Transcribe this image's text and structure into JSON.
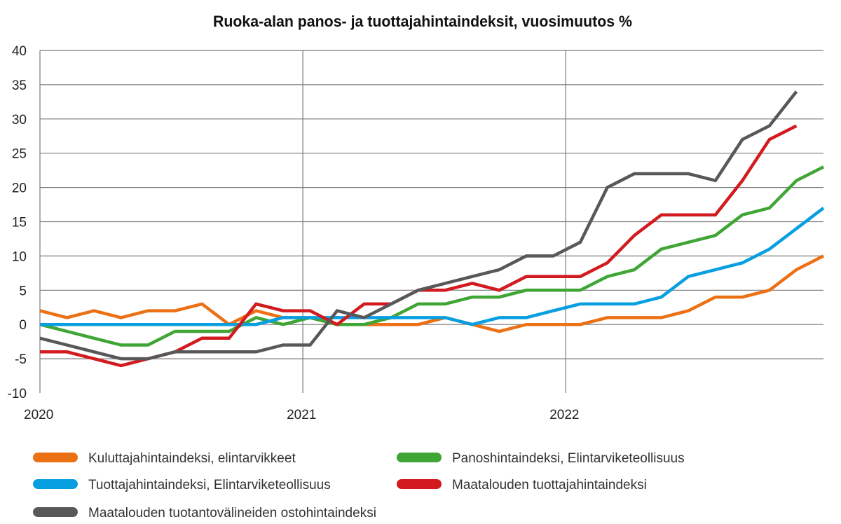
{
  "chart_data": {
    "type": "line",
    "title": "Ruoka-alan panos- ja tuottajahintaindeksit, vuosimuutos %",
    "xlabel": "",
    "ylabel": "",
    "ylim": [
      -10,
      40
    ],
    "yticks": [
      40,
      35,
      30,
      25,
      20,
      15,
      10,
      5,
      0,
      -5,
      -10
    ],
    "ytick_labels": [
      "40",
      "35",
      "30",
      "25",
      "20",
      "15",
      "10",
      "5",
      "0",
      "-5",
      "-10"
    ],
    "x_count": 30,
    "x_ticks": [
      {
        "label": "2020",
        "at": 0
      },
      {
        "label": "2021",
        "at": 9.73
      },
      {
        "label": "2022",
        "at": 19.46
      }
    ],
    "grid": true,
    "legend_position": "bottom",
    "series": [
      {
        "name": "Kuluttajahintaindeksi, elintarvikkeet",
        "color": "#ec7014",
        "values": [
          2,
          1,
          2,
          1,
          2,
          2,
          3,
          0,
          2,
          1,
          1,
          0,
          0,
          0,
          0,
          1,
          0,
          -1,
          0,
          0,
          0,
          1,
          1,
          1,
          2,
          4,
          4,
          5,
          8,
          10
        ]
      },
      {
        "name": "Panoshintaindeksi, Elintarviketeollisuus",
        "color": "#3fa535",
        "values": [
          0,
          -1,
          -2,
          -3,
          -3,
          -1,
          -1,
          -1,
          1,
          0,
          1,
          0,
          0,
          1,
          3,
          3,
          4,
          4,
          5,
          5,
          5,
          7,
          8,
          11,
          12,
          13,
          16,
          17,
          21,
          23
        ]
      },
      {
        "name": "Tuottajahintaindeksi, Elintarviketeollisuus",
        "color": "#079fe0",
        "values": [
          0,
          0,
          0,
          0,
          0,
          0,
          0,
          0,
          0,
          1,
          1,
          1,
          1,
          1,
          1,
          1,
          0,
          1,
          1,
          2,
          3,
          3,
          3,
          4,
          7,
          8,
          9,
          11,
          14,
          17
        ]
      },
      {
        "name": "Maatalouden tuottajahintaindeksi",
        "color": "#d21a1f",
        "values": [
          -4,
          -4,
          -5,
          -6,
          -5,
          -4,
          -2,
          -2,
          3,
          2,
          2,
          0,
          3,
          3,
          5,
          5,
          6,
          5,
          7,
          7,
          7,
          9,
          13,
          16,
          16,
          16,
          21,
          27,
          29,
          null
        ]
      },
      {
        "name": "Maatalouden tuotantovälineiden ostohintaindeksi",
        "color": "#58585a",
        "values": [
          -2,
          -3,
          -4,
          -5,
          -5,
          -4,
          -4,
          -4,
          -4,
          -3,
          -3,
          2,
          1,
          3,
          5,
          6,
          7,
          8,
          10,
          10,
          12,
          20,
          22,
          22,
          22,
          21,
          27,
          29,
          34,
          null
        ]
      }
    ]
  }
}
